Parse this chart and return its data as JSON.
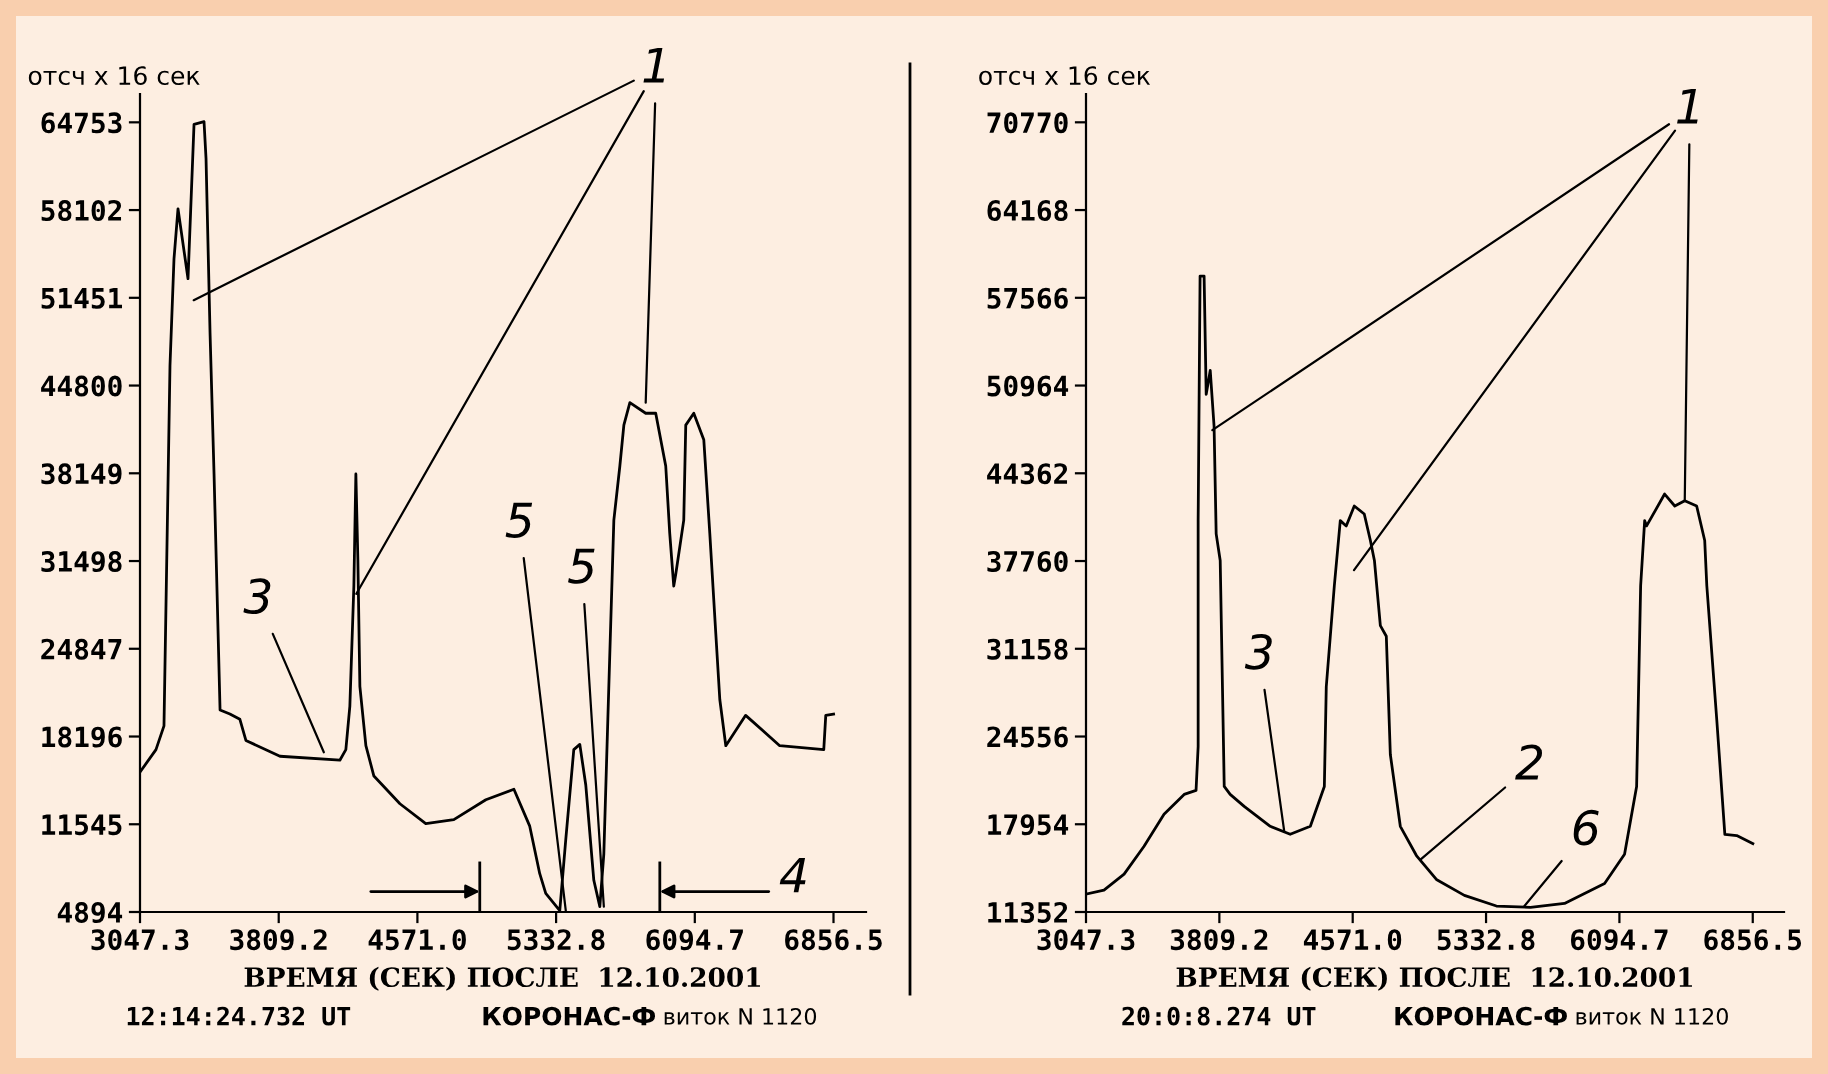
{
  "chart_data": [
    {
      "type": "line",
      "ylabel": "отсч x 16 сек",
      "xlabel": "ВРЕМЯ (СЕК) ПОСЛЕ  12.10.2001",
      "xlim": [
        3047.3,
        7035
      ],
      "ylim": [
        4894,
        66900
      ],
      "xticks": [
        {
          "value": 3047.3,
          "label": "3047.3"
        },
        {
          "value": 3809.2,
          "label": "3809.2"
        },
        {
          "value": 4571.0,
          "label": "4571.0"
        },
        {
          "value": 5332.8,
          "label": "5332.8"
        },
        {
          "value": 6094.7,
          "label": "6094.7"
        },
        {
          "value": 6856.5,
          "label": "6856.5"
        }
      ],
      "yticks": [
        4894,
        11545,
        18196,
        24847,
        31498,
        38149,
        44800,
        51451,
        58102,
        64753
      ],
      "grid": false,
      "legend": false,
      "marker": "none",
      "line_style": "solid",
      "series": [
        {
          "color": "#000000",
          "x": [
            3047.3,
            3135,
            3179,
            3212,
            3234,
            3256,
            3311,
            3344,
            3399,
            3410,
            3432,
            3454,
            3487,
            3541,
            3596,
            3629,
            3816,
            4145,
            4178,
            4200,
            4222,
            4233,
            4244,
            4255,
            4288,
            4332,
            4475,
            4617,
            4771,
            4947,
            5101,
            5188,
            5243,
            5276,
            5353,
            5386,
            5430,
            5463,
            5496,
            5540,
            5573,
            5595,
            5617,
            5650,
            5683,
            5705,
            5738,
            5825,
            5880,
            5935,
            5957,
            5979,
            5990,
            6034,
            6045,
            6089,
            6144,
            6177,
            6210,
            6232,
            6265,
            6374,
            6561,
            6803,
            6814,
            6857
          ],
          "values": [
            15500,
            17200,
            19000,
            46300,
            54400,
            58200,
            52900,
            64600,
            64800,
            62000,
            48800,
            38100,
            20200,
            19900,
            19500,
            17900,
            16700,
            16400,
            17200,
            20500,
            29600,
            38100,
            31600,
            22000,
            17500,
            15200,
            13100,
            11600,
            11900,
            13400,
            14200,
            11400,
            7800,
            6300,
            5000,
            10400,
            17200,
            17600,
            14500,
            7300,
            5300,
            9300,
            19500,
            34600,
            38700,
            41800,
            43500,
            42700,
            42700,
            38700,
            33600,
            29600,
            30500,
            34600,
            41800,
            42700,
            40700,
            33600,
            26000,
            21000,
            17500,
            19800,
            17500,
            17200,
            19800,
            19900
          ]
        }
      ],
      "annotations": [
        {
          "text": "1",
          "x": 5825,
          "y": 43500
        },
        {
          "text": "3",
          "x": 4057,
          "y": 17000
        },
        {
          "text": "5",
          "x": 5595,
          "y": 5300
        },
        {
          "text": "5",
          "x": 5386,
          "y": 5000
        },
        "4",
        "12:14:24.732 UT",
        "КОРОНАС-Ф",
        "виток N 1120"
      ]
    },
    {
      "type": "line",
      "ylabel": "отсч x 16 сек",
      "xlabel": "ВРЕМЯ (СЕК) ПОСЛЕ  12.10.2001",
      "xlim": [
        3047.3,
        7035
      ],
      "ylim": [
        11352,
        72900
      ],
      "xticks": [
        {
          "value": 3047.3,
          "label": "3047.3"
        },
        {
          "value": 3809.2,
          "label": "3809.2"
        },
        {
          "value": 4571.0,
          "label": "4571.0"
        },
        {
          "value": 5332.8,
          "label": "5332.8"
        },
        {
          "value": 6094.7,
          "label": "6094.7"
        },
        {
          "value": 6856.5,
          "label": "6856.5"
        }
      ],
      "yticks": [
        11352,
        17954,
        24556,
        31158,
        37760,
        44362,
        50964,
        57566,
        64168,
        70770
      ],
      "grid": false,
      "legend": false,
      "marker": "none",
      "line_style": "solid",
      "series": [
        {
          "color": "#000000",
          "x": [
            3047.3,
            3150,
            3265,
            3379,
            3493,
            3608,
            3676,
            3688,
            3688,
            3699,
            3722,
            3734,
            3757,
            3779,
            3791,
            3814,
            3837,
            3871,
            3951,
            4100,
            4214,
            4329,
            4409,
            4420,
            4466,
            4500,
            4534,
            4580,
            4637,
            4672,
            4695,
            4729,
            4763,
            4786,
            4843,
            4935,
            5049,
            5209,
            5392,
            5587,
            5781,
            6010,
            6124,
            6193,
            6216,
            6239,
            6250,
            6353,
            6411,
            6468,
            6536,
            6582,
            6594,
            6651,
            6697,
            6765,
            6857
          ],
          "values": [
            12700,
            13000,
            14200,
            16300,
            18700,
            20200,
            20500,
            23800,
            40800,
            59200,
            59200,
            50300,
            52100,
            47900,
            39800,
            37800,
            20800,
            20200,
            19300,
            17800,
            17200,
            17800,
            20800,
            28300,
            35900,
            40800,
            40400,
            41900,
            41300,
            39300,
            37800,
            32900,
            32100,
            23200,
            17800,
            15600,
            13800,
            12600,
            11800,
            11700,
            12000,
            13500,
            15700,
            20800,
            35900,
            40800,
            40400,
            42800,
            41900,
            42300,
            41900,
            39300,
            35900,
            25800,
            17200,
            17100,
            16500
          ]
        }
      ],
      "annotations": [
        {
          "text": "1",
          "x": 6468,
          "y": 42300
        },
        {
          "text": "3",
          "x": 4180,
          "y": 17400
        },
        {
          "text": "2",
          "x": 4958,
          "y": 15300
        },
        {
          "text": "6",
          "x": 5552,
          "y": 11800
        },
        "20:0:8.274 UT",
        "КОРОНАС-Ф",
        "виток N 1120"
      ]
    }
  ]
}
